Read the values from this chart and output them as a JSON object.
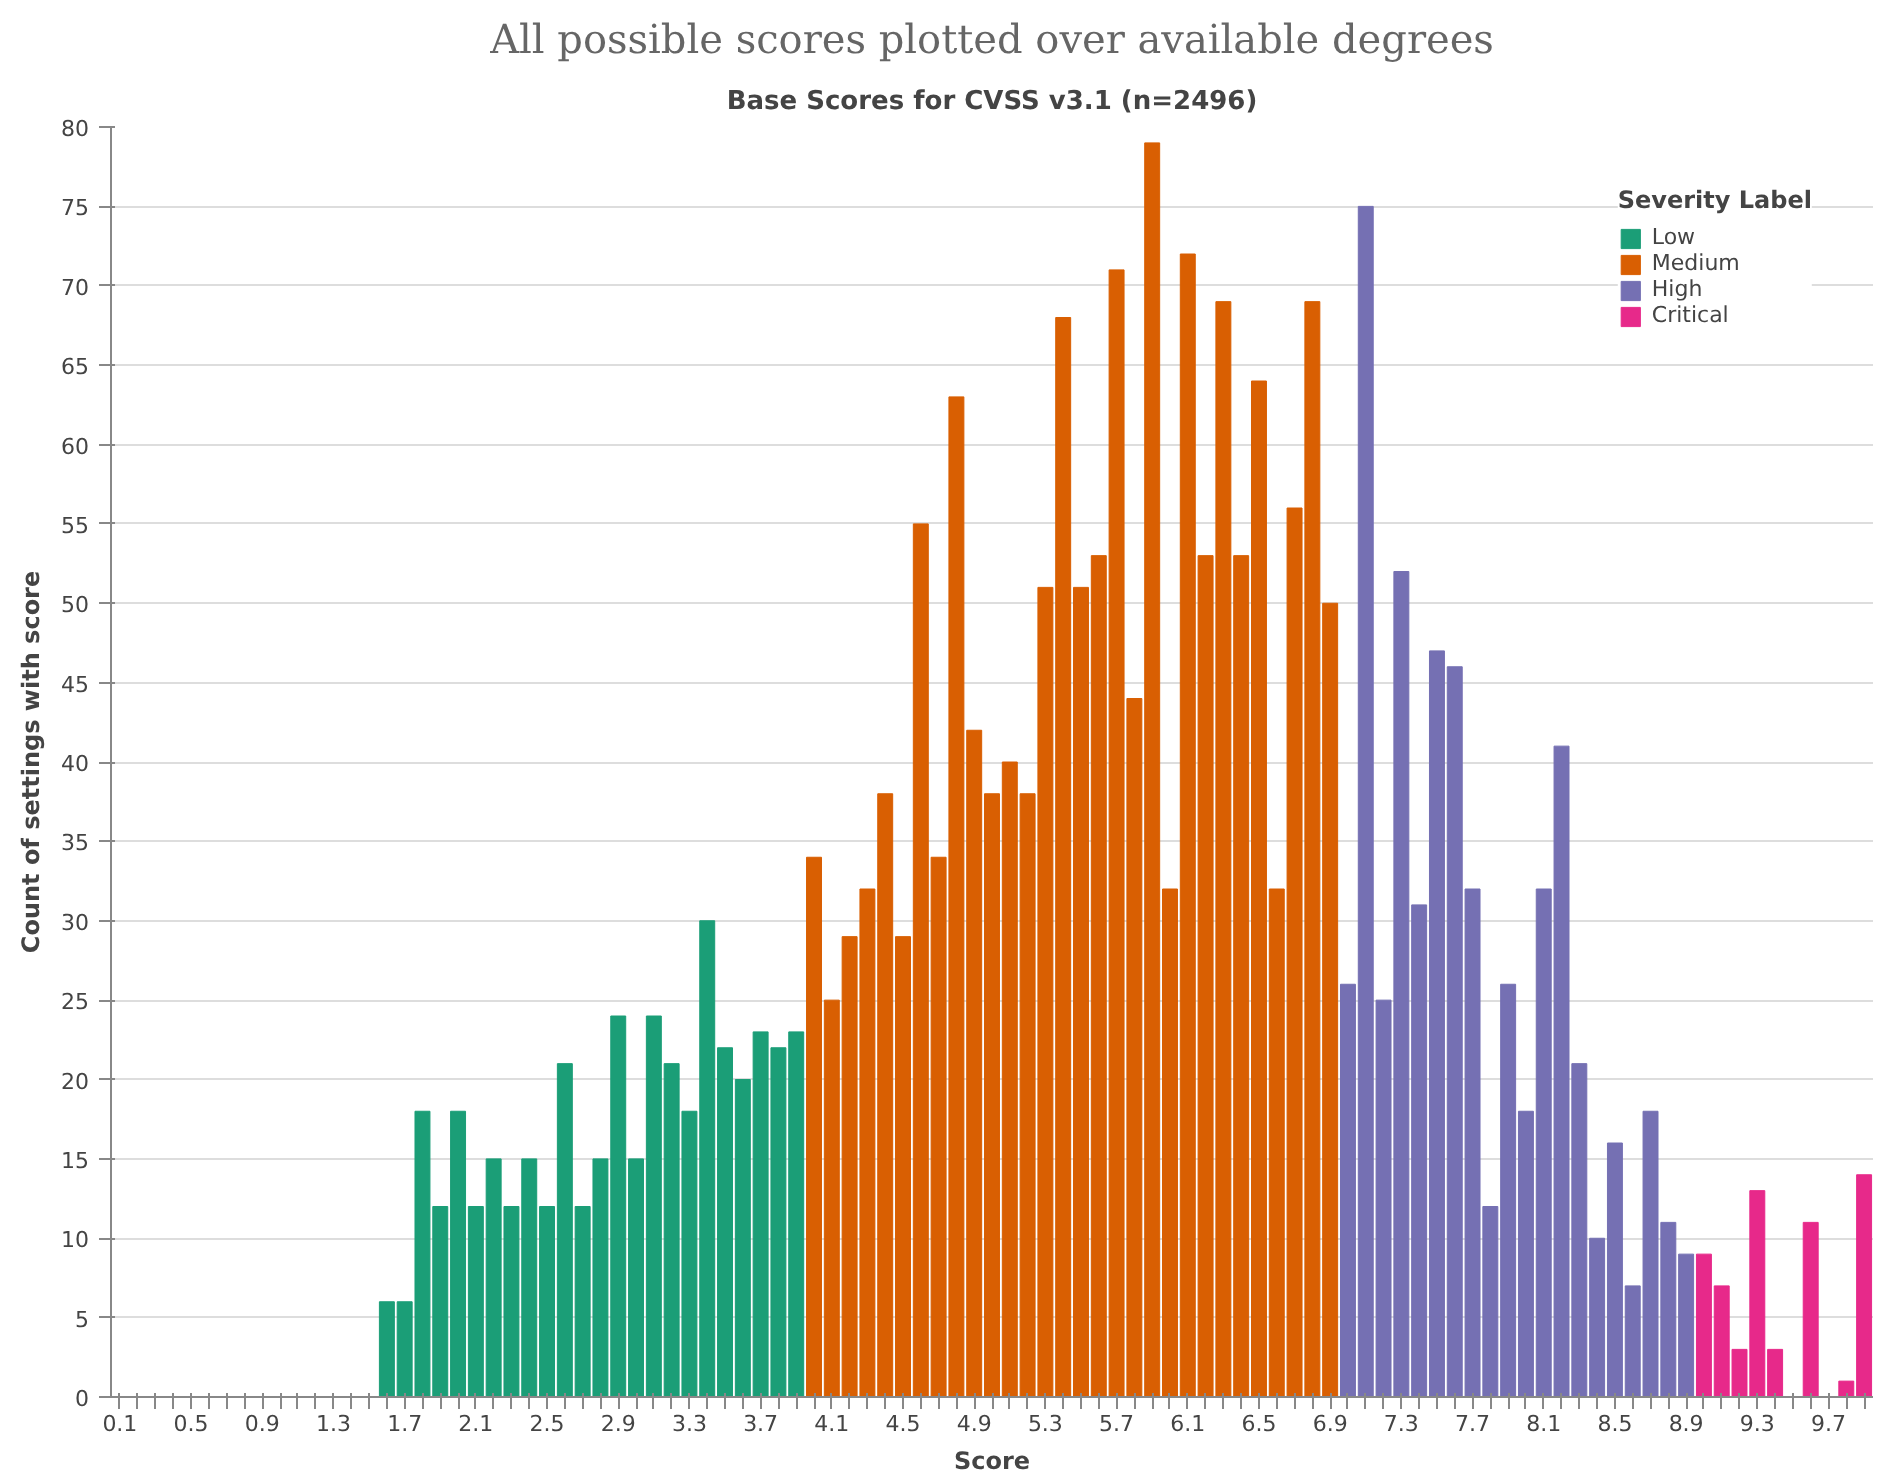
{
  "chart_data": {
    "type": "bar",
    "title": "All possible scores plotted over available degrees",
    "subtitle": "Base Scores for CVSS v3.1 (n=2496)",
    "xlabel": "Score",
    "ylabel": "Count of settings with score",
    "legend_title": "Severity Label",
    "categories": [
      "0.1",
      null,
      null,
      null,
      "0.5",
      null,
      null,
      null,
      "0.9",
      null,
      null,
      null,
      "1.3",
      null,
      null,
      null,
      "1.7",
      null,
      null,
      null,
      "2.1",
      null,
      null,
      null,
      "2.5",
      null,
      null,
      null,
      "2.9",
      null,
      null,
      null,
      "3.3",
      null,
      null,
      null,
      "3.7",
      null,
      null,
      null,
      "4.1",
      null,
      null,
      null,
      "4.5",
      null,
      null,
      null,
      "4.9",
      null,
      null,
      null,
      "5.3",
      null,
      null,
      null,
      "5.7",
      null,
      null,
      null,
      "6.1",
      null,
      null,
      null,
      "6.5",
      null,
      null,
      null,
      "6.9",
      null,
      null,
      null,
      "7.3",
      null,
      null,
      null,
      "7.7",
      null,
      null,
      null,
      "8.1",
      null,
      null,
      null,
      "8.5",
      null,
      null,
      null,
      "8.9",
      null,
      null,
      null,
      "9.3",
      null,
      null,
      null,
      "9.7",
      null,
      null
    ],
    "series": [
      {
        "name": "Low",
        "color": "#1b9e77",
        "values": [
          0,
          0,
          0,
          0,
          0,
          0,
          0,
          0,
          0,
          0,
          0,
          0,
          0,
          0,
          0,
          6,
          6,
          18,
          12,
          18,
          12,
          15,
          12,
          15,
          12,
          21,
          12,
          15,
          24,
          15,
          24,
          21,
          18,
          30,
          22,
          20,
          23,
          22,
          23,
          null,
          null,
          null,
          null,
          null,
          null,
          null,
          null,
          null,
          null,
          null,
          null,
          null,
          null,
          null,
          null,
          null,
          null,
          null,
          null,
          null,
          null,
          null,
          null,
          null,
          null,
          null,
          null,
          null,
          null,
          null,
          null,
          null,
          null,
          null,
          null,
          null,
          null,
          null,
          null,
          null,
          null,
          null,
          null,
          null,
          null,
          null,
          null,
          null,
          null,
          null,
          null,
          null,
          null,
          null,
          null,
          null,
          null,
          null,
          null
        ]
      },
      {
        "name": "Medium",
        "color": "#d95f02",
        "values": [
          null,
          null,
          null,
          null,
          null,
          null,
          null,
          null,
          null,
          null,
          null,
          null,
          null,
          null,
          null,
          null,
          null,
          null,
          null,
          null,
          null,
          null,
          null,
          null,
          null,
          null,
          null,
          null,
          null,
          null,
          null,
          null,
          null,
          null,
          null,
          null,
          null,
          null,
          null,
          34,
          25,
          29,
          32,
          38,
          29,
          55,
          34,
          63,
          42,
          38,
          40,
          38,
          51,
          68,
          51,
          53,
          71,
          44,
          79,
          32,
          72,
          53,
          69,
          53,
          64,
          32,
          56,
          69,
          50,
          null,
          null,
          null,
          null,
          null,
          null,
          null,
          null,
          null,
          null,
          null,
          null,
          null,
          null,
          null,
          null,
          null,
          null,
          null,
          null,
          null,
          null,
          null,
          null,
          null,
          null,
          null,
          null,
          null,
          null
        ]
      },
      {
        "name": "High",
        "color": "#7570b3",
        "values": [
          null,
          null,
          null,
          null,
          null,
          null,
          null,
          null,
          null,
          null,
          null,
          null,
          null,
          null,
          null,
          null,
          null,
          null,
          null,
          null,
          null,
          null,
          null,
          null,
          null,
          null,
          null,
          null,
          null,
          null,
          null,
          null,
          null,
          null,
          null,
          null,
          null,
          null,
          null,
          null,
          null,
          null,
          null,
          null,
          null,
          null,
          null,
          null,
          null,
          null,
          null,
          null,
          null,
          null,
          null,
          null,
          null,
          null,
          null,
          null,
          null,
          null,
          null,
          null,
          null,
          null,
          null,
          null,
          null,
          26,
          75,
          25,
          52,
          31,
          47,
          46,
          32,
          12,
          26,
          18,
          32,
          41,
          21,
          10,
          16,
          7,
          18,
          11,
          9,
          null,
          null,
          null,
          null,
          null,
          null,
          null,
          null,
          null,
          null
        ]
      },
      {
        "name": "Critical",
        "color": "#e7298a",
        "values": [
          null,
          null,
          null,
          null,
          null,
          null,
          null,
          null,
          null,
          null,
          null,
          null,
          null,
          null,
          null,
          null,
          null,
          null,
          null,
          null,
          null,
          null,
          null,
          null,
          null,
          null,
          null,
          null,
          null,
          null,
          null,
          null,
          null,
          null,
          null,
          null,
          null,
          null,
          null,
          null,
          null,
          null,
          null,
          null,
          null,
          null,
          null,
          null,
          null,
          null,
          null,
          null,
          null,
          null,
          null,
          null,
          null,
          null,
          null,
          null,
          null,
          null,
          null,
          null,
          null,
          null,
          null,
          null,
          null,
          null,
          null,
          null,
          null,
          null,
          null,
          null,
          null,
          null,
          null,
          null,
          null,
          null,
          null,
          null,
          null,
          null,
          null,
          null,
          null,
          9,
          7,
          3,
          13,
          3,
          0,
          11,
          0,
          1,
          14
        ]
      }
    ],
    "ylim": [
      0,
      80
    ],
    "yticks": [
      0,
      5,
      10,
      15,
      20,
      25,
      30,
      35,
      40,
      45,
      50,
      55,
      60,
      65,
      70,
      75,
      80
    ],
    "grid": "y",
    "legend": "top right"
  }
}
